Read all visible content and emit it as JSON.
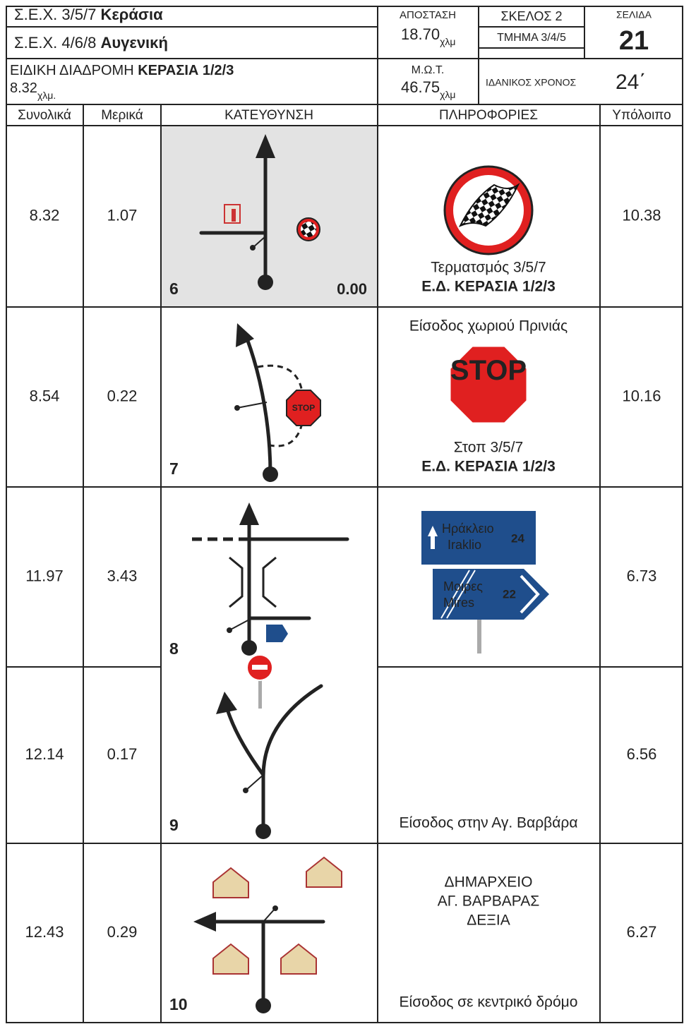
{
  "header": {
    "stage_a": {
      "label": "Σ.Ε.Χ. 3/5/7",
      "name": "Κεράσια"
    },
    "stage_b": {
      "label": "Σ.Ε.Χ. 4/6/8",
      "name": "Αυγενική"
    },
    "special_stage": {
      "label": "ΕΙΔΙΚΗ ΔΙΑΔΡΟΜΗ",
      "name": "ΚΕΡΑΣΙΑ 1/2/3",
      "length": "8.32",
      "unit": "χλμ."
    },
    "distance": {
      "label": "ΑΠΟΣΤΑΣΗ",
      "value": "18.70",
      "unit": "χλμ"
    },
    "leg": "ΣΚΕΛΟΣ 2",
    "section": "ΤΜΗΜΑ 3/4/5",
    "page": {
      "label": "ΣΕΛΙΔΑ",
      "value": "21"
    },
    "mot": {
      "label": "Μ.Ω.Τ.",
      "value": "46.75",
      "unit": "χλμ"
    },
    "ideal_time": {
      "label": "ΙΔΑΝΙΚΟΣ ΧΡΟΝΟΣ",
      "value": "24΄"
    }
  },
  "columns": [
    "Συνολικά",
    "Μερικά",
    "ΚΑΤΕΥΘΥΝΣΗ",
    "ΠΛΗΡΟΦΟΡΙΕΣ",
    "Υπόλοιπο"
  ],
  "rows": [
    {
      "total": "8.32",
      "partial": "1.07",
      "number": "6",
      "distance_mark": "0.00",
      "remaining": "10.38",
      "info_bottom": [
        {
          "text": "Τερματσμός 3/5/7"
        },
        {
          "text": "Ε.Δ. ΚΕΡΑΣΙΑ 1/2/3",
          "bold": true
        }
      ]
    },
    {
      "total": "8.54",
      "partial": "0.22",
      "number": "7",
      "remaining": "10.16",
      "sign": "STOP",
      "info_top": [
        {
          "text": "Είσοδος χωριού Πρινιάς"
        }
      ],
      "info_bottom": [
        {
          "text": "Στοπ 3/5/7"
        },
        {
          "text": "Ε.Δ. ΚΕΡΑΣΙΑ 1/2/3",
          "bold": true
        }
      ]
    },
    {
      "total": "11.97",
      "partial": "3.43",
      "number": "8",
      "remaining": "6.73",
      "sign": {
        "upper": {
          "name_gr": "Ηράκλειο",
          "name_en": "Iraklio",
          "km": "24"
        },
        "lower": {
          "name_gr": "Μοιρες",
          "name_en": "Mires",
          "km": "22"
        }
      }
    },
    {
      "total": "12.14",
      "partial": "0.17",
      "number": "9",
      "remaining": "6.56",
      "info_bottom": [
        {
          "text": "Είσοδος στην Αγ. Βαρβάρα"
        }
      ]
    },
    {
      "total": "12.43",
      "partial": "0.29",
      "number": "10",
      "remaining": "6.27",
      "info_top": [
        {
          "text": "ΔΗΜΑΡΧΕΙΟ"
        },
        {
          "text": "ΑΓ. ΒΑΡΒΑΡΑΣ"
        },
        {
          "text": "ΔΕΞΙΑ"
        }
      ],
      "info_bottom": [
        {
          "text": "Είσοδος σε κεντρικό δρόμο"
        }
      ]
    }
  ]
}
